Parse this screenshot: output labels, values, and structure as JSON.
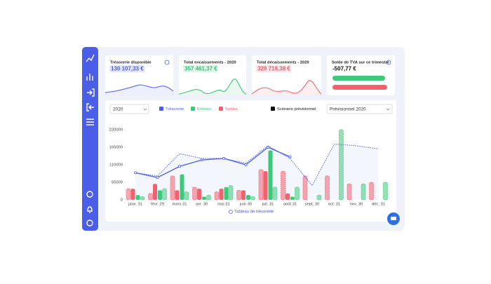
{
  "cards": [
    {
      "title": "Trésorerie disponible",
      "value": "130 107,33 €",
      "color": "#4a5ee8"
    },
    {
      "title": "Total encaissements - 2020",
      "value": "357 461,37 €",
      "color": "#2fbf6e"
    },
    {
      "title": "Total décaissements - 2020",
      "value": "329 719,38 €",
      "color": "#ee5a66"
    },
    {
      "title": "Solde de TVA sur ce trimestre",
      "value": "-507,77 €",
      "color": "#111111"
    }
  ],
  "controls": {
    "year": "2020",
    "scenario": "Prévisionnel 2020",
    "link": "Tableau de trésorerie"
  },
  "chart_data": {
    "type": "bar",
    "categories": [
      "janv. 31",
      "févr. 29",
      "mars 31",
      "avr. 30",
      "mai 31",
      "juin 30",
      "juil. 31",
      "août 31",
      "sept. 30",
      "oct. 31",
      "nov. 30",
      "déc. 31"
    ],
    "ylim": [
      0,
      220000
    ],
    "yticks": [
      0,
      55000,
      110000,
      165000,
      220000
    ],
    "series": [
      {
        "name": "Trésorerie",
        "color": "#4a5ee8",
        "values": [
          85000,
          70000,
          105000,
          125000,
          130000,
          110000,
          165000,
          135000,
          null,
          null,
          null,
          null
        ]
      },
      {
        "name": "Entrées",
        "color": "#3ec97a",
        "values": [
          15000,
          30000,
          80000,
          10000,
          40000,
          15000,
          155000,
          10000,
          null,
          null,
          null,
          null
        ]
      },
      {
        "name": "Sorties",
        "color": "#f0626e",
        "values": [
          35000,
          50000,
          30000,
          35000,
          35000,
          30000,
          90000,
          20000,
          null,
          null,
          null,
          null
        ]
      }
    ],
    "forecast": {
      "label": "Scénario prévisionnel",
      "tresorerie": [
        85000,
        75000,
        145000,
        130000,
        130000,
        115000,
        170000,
        130000,
        45000,
        175000,
        170000,
        160000
      ],
      "entrees": [
        10000,
        35000,
        25000,
        15000,
        45000,
        10000,
        40000,
        40000,
        15000,
        220000,
        50000,
        55000
      ],
      "sorties": [
        35000,
        20000,
        75000,
        40000,
        25000,
        30000,
        95000,
        90000,
        75000,
        75000,
        50000,
        55000
      ]
    }
  }
}
